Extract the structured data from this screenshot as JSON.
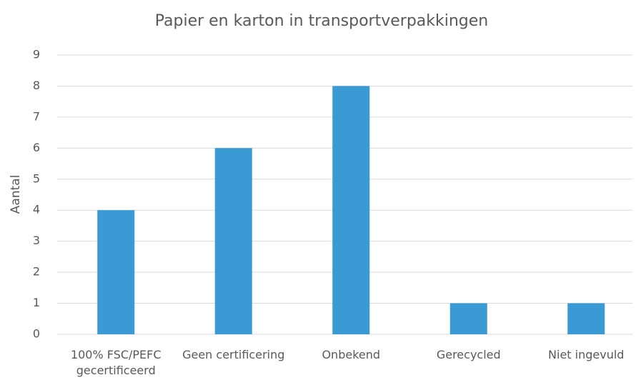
{
  "chart_data": {
    "type": "bar",
    "title": "Papier en karton in transportverpakkingen",
    "y_label": "Aantal",
    "categories": [
      "100% FSC/PEFC gecertificeerd",
      "Geen certificering",
      "Onbekend",
      "Gerecycled",
      "Niet ingevuld"
    ],
    "values": [
      4,
      6,
      8,
      1,
      1
    ],
    "color": "#3a9ad3",
    "ylim": [
      0,
      9
    ],
    "yticks": [
      0,
      1,
      2,
      3,
      4,
      5,
      6,
      7,
      8,
      9
    ],
    "grid": true
  }
}
